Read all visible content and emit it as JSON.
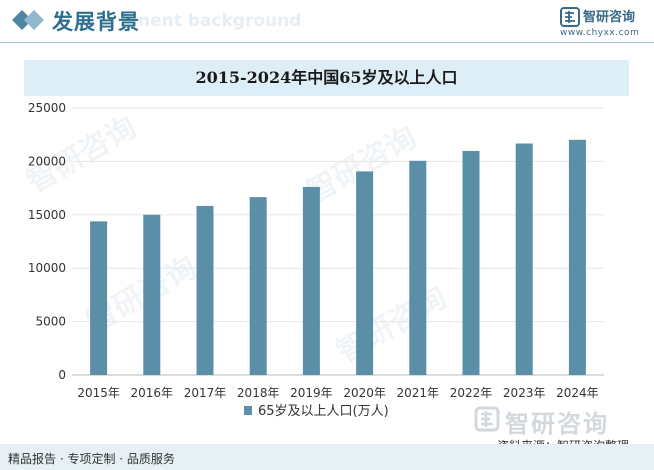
{
  "header": {
    "title": "发展背景",
    "ghost_text": "nent background",
    "logo_name": "智研咨询",
    "logo_url": "www.chyxx.com"
  },
  "chart_data": {
    "type": "bar",
    "title": "2015-2024年中国65岁及以上人口",
    "categories": [
      "2015年",
      "2016年",
      "2017年",
      "2018年",
      "2019年",
      "2020年",
      "2021年",
      "2022年",
      "2023年",
      "2024年"
    ],
    "series": [
      {
        "name": "65岁及以上人口(万人)",
        "values": [
          14386,
          15003,
          15831,
          16658,
          17603,
          19064,
          20056,
          20978,
          21676,
          22023
        ]
      }
    ],
    "ylim": [
      0,
      25000
    ],
    "yticks": [
      "0",
      "5000",
      "10000",
      "15000",
      "20000",
      "25000"
    ],
    "grid": true,
    "legend": "bottom",
    "color": "#5b8fa8"
  },
  "footer": {
    "left": "精品报告 · 专项定制 · 品质服务",
    "source": "资料来源：智研咨询整理",
    "watermark": "智研咨询"
  }
}
